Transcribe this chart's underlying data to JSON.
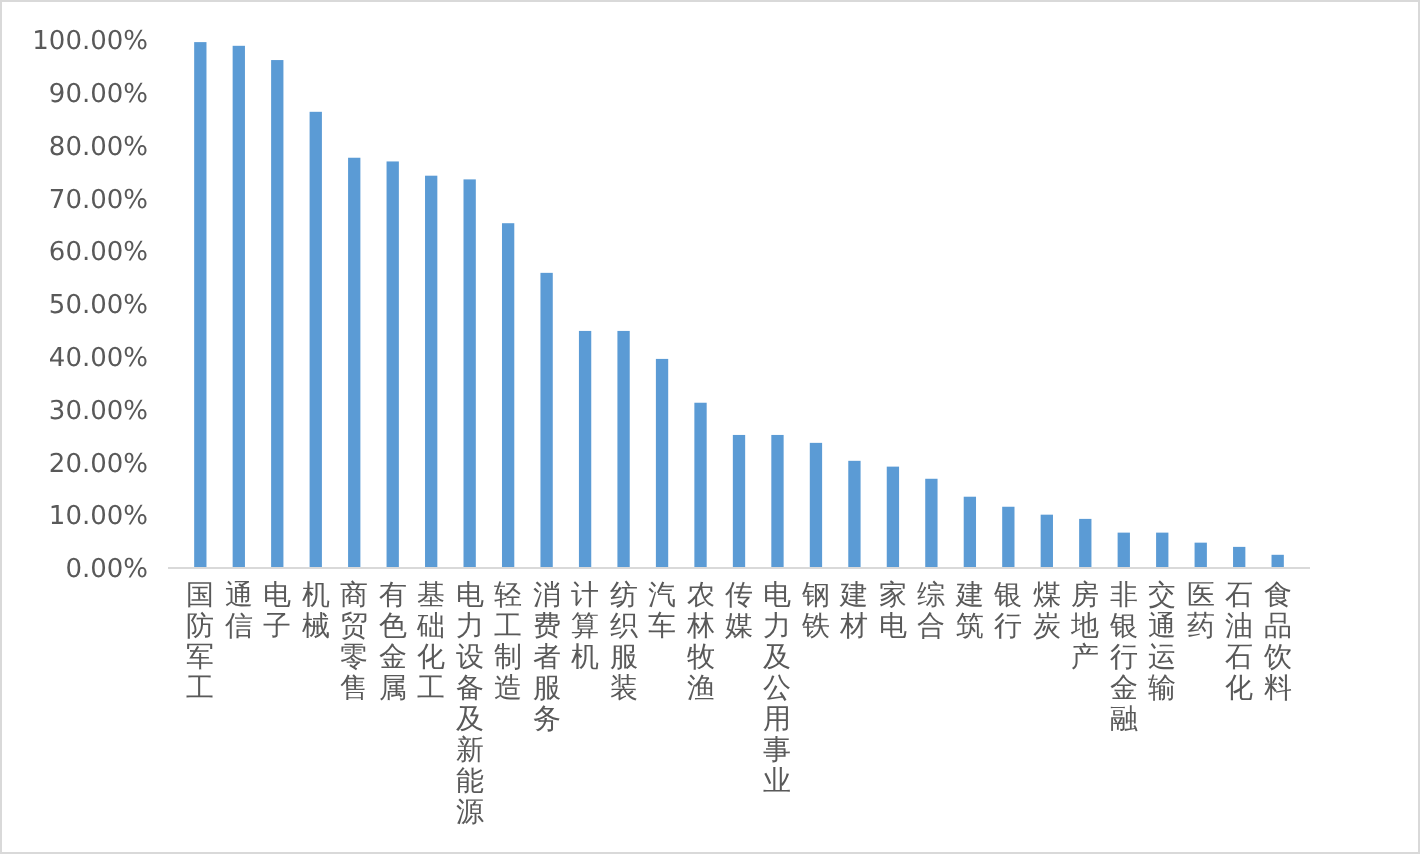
{
  "chart_data": {
    "type": "bar",
    "categories": [
      "国防军工",
      "通信",
      "电子",
      "机械",
      "商贸零售",
      "有色金属",
      "基础化工",
      "电力设备及新能源",
      "轻工制造",
      "消费者服务",
      "计算机",
      "纺织服装",
      "汽车",
      "农林牧渔",
      "传媒",
      "电力及公用事业",
      "钢铁",
      "建材",
      "家电",
      "综合",
      "建筑",
      "银行",
      "煤炭",
      "房地产",
      "非银行金融",
      "交通运输",
      "医药",
      "石油石化",
      "食品饮料"
    ],
    "values": [
      99.6,
      98.9,
      96.2,
      86.4,
      77.7,
      77.0,
      74.3,
      73.6,
      65.3,
      55.9,
      44.9,
      44.9,
      39.6,
      31.3,
      25.2,
      25.2,
      23.7,
      20.3,
      19.2,
      16.9,
      13.5,
      11.6,
      10.1,
      9.3,
      6.7,
      6.7,
      4.8,
      4.0,
      2.5
    ],
    "color": "#5b9bd5",
    "ylim": [
      0,
      100
    ],
    "yticks": [
      {
        "value": 0,
        "label": "0.00%"
      },
      {
        "value": 10,
        "label": "10.00%"
      },
      {
        "value": 20,
        "label": "20.00%"
      },
      {
        "value": 30,
        "label": "30.00%"
      },
      {
        "value": 40,
        "label": "40.00%"
      },
      {
        "value": 50,
        "label": "50.00%"
      },
      {
        "value": 60,
        "label": "60.00%"
      },
      {
        "value": 70,
        "label": "70.00%"
      },
      {
        "value": 80,
        "label": "80.00%"
      },
      {
        "value": 90,
        "label": "90.00%"
      },
      {
        "value": 100,
        "label": "100.00%"
      }
    ],
    "grid": false
  }
}
